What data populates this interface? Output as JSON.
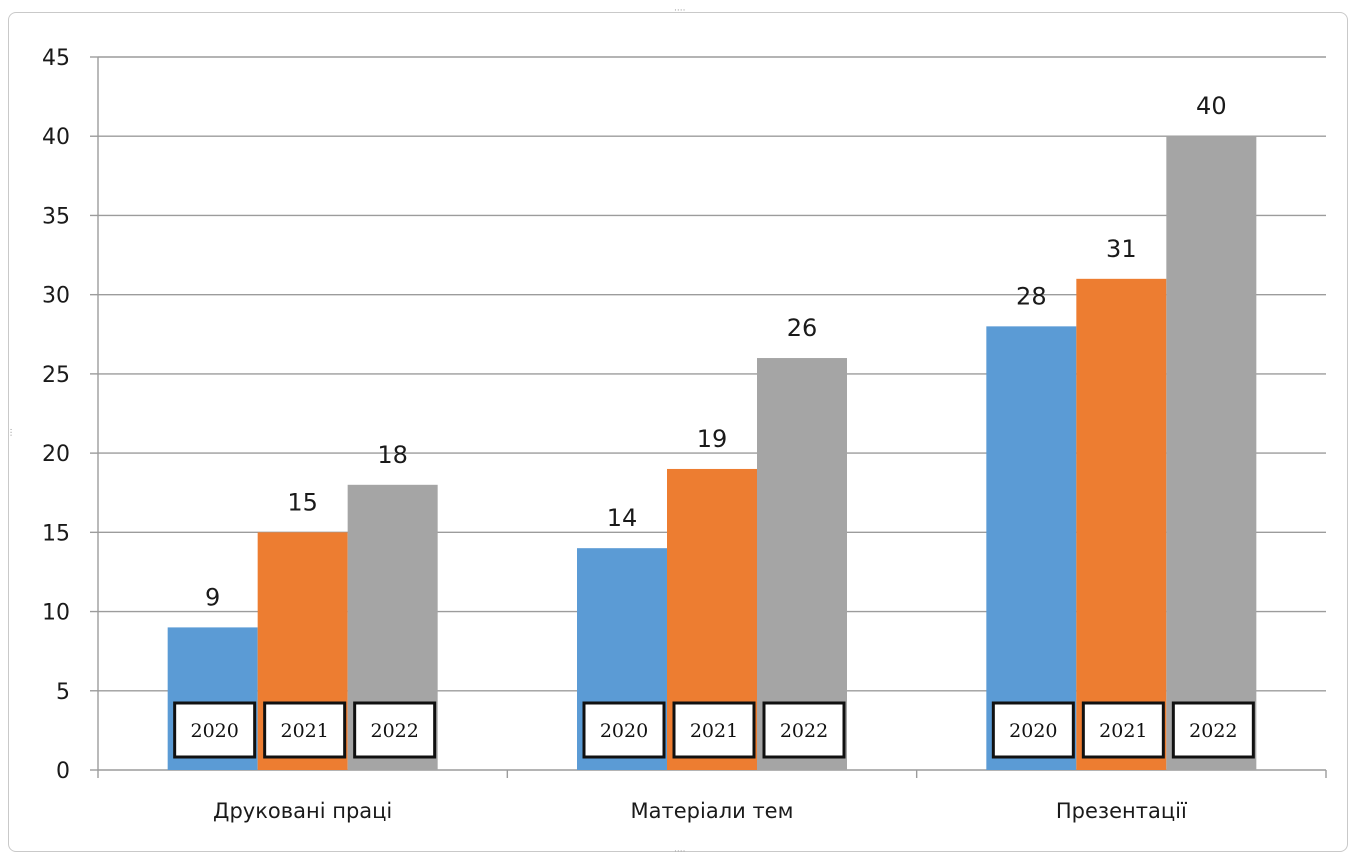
{
  "chart_data": {
    "type": "bar",
    "categories": [
      "Друковані праці",
      "Матеріали тем",
      "Презентації"
    ],
    "series": [
      {
        "year_label": "2020",
        "color": "#5B9BD5",
        "values": [
          9,
          14,
          28
        ]
      },
      {
        "year_label": "2021",
        "color": "#ED7D31",
        "values": [
          15,
          19,
          31
        ]
      },
      {
        "year_label": "2022",
        "color": "#A5A5A5",
        "values": [
          18,
          26,
          40
        ]
      }
    ],
    "ylim": [
      0,
      45
    ],
    "yticks": [
      0,
      5,
      10,
      15,
      20,
      25,
      30,
      35,
      40,
      45
    ],
    "grid": true,
    "legend": "none",
    "data_labels": true,
    "bar_year_labels": true
  }
}
